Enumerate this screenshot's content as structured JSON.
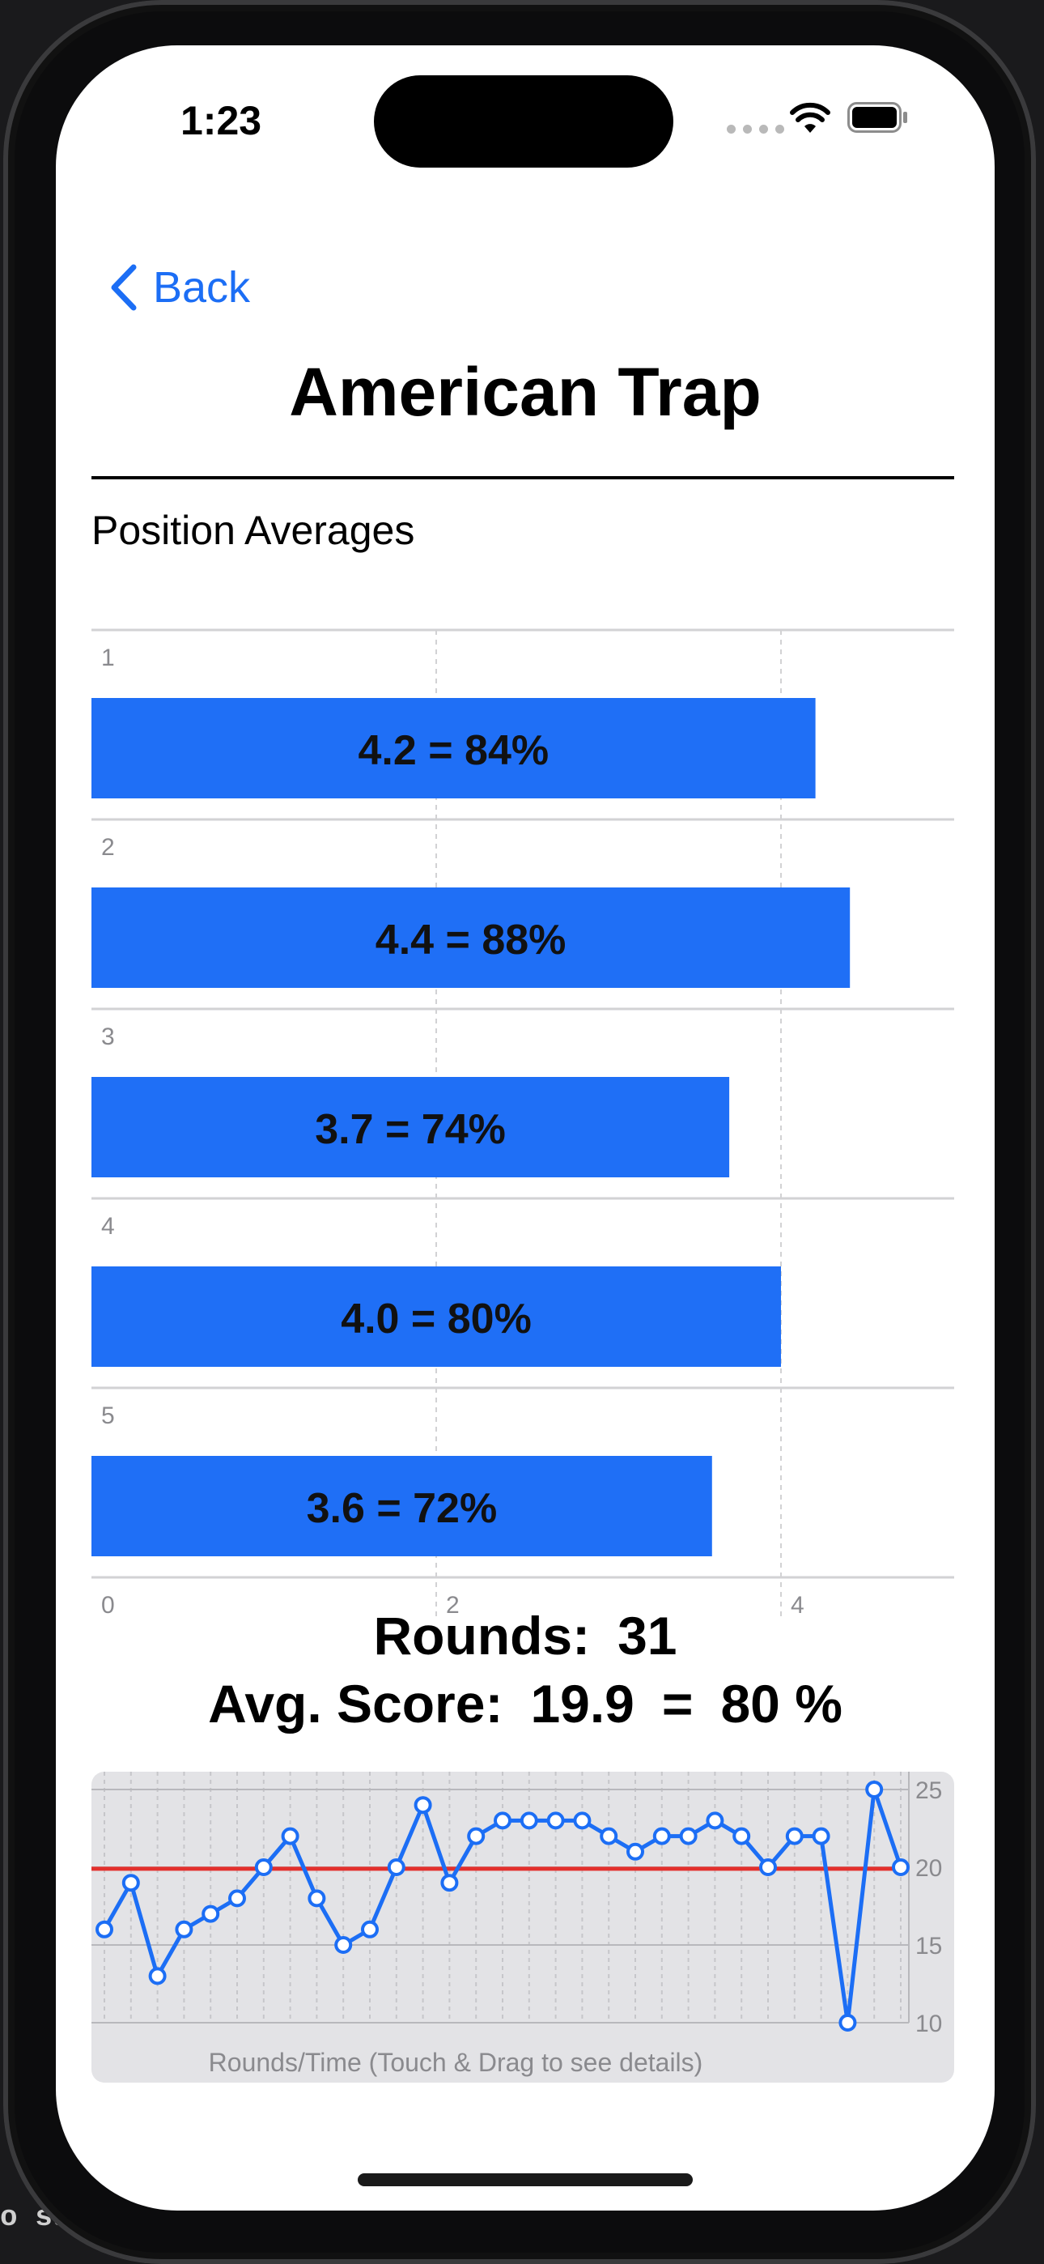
{
  "status_bar": {
    "time": "1:23"
  },
  "nav": {
    "back_label": "Back",
    "title": "American Trap"
  },
  "section": {
    "label": "Position Averages"
  },
  "colors": {
    "accent": "#1c6ef5",
    "bar": "#1f6ff6",
    "average_line": "#e3302d",
    "trend_line": "#1c6ef5"
  },
  "chart_data": [
    {
      "type": "bar",
      "orientation": "horizontal",
      "categories": [
        "1",
        "2",
        "3",
        "4",
        "5"
      ],
      "values": [
        4.2,
        4.4,
        3.7,
        4.0,
        3.6
      ],
      "bar_labels": [
        "4.2 = 84%",
        "4.4 = 88%",
        "3.7 = 74%",
        "4.0 = 80%",
        "3.6 = 72%"
      ],
      "x_ticks": [
        "0",
        "2",
        "4"
      ],
      "xlim": [
        0,
        5
      ],
      "grid": true
    },
    {
      "type": "line",
      "x_label": "Rounds/Time (Touch & Drag to see details)",
      "y_ticks": [
        "25",
        "20",
        "15",
        "10"
      ],
      "ylim": [
        10,
        25
      ],
      "average": 19.9,
      "values": [
        16,
        19,
        13,
        16,
        17,
        18,
        20,
        22,
        18,
        15,
        16,
        20,
        24,
        19,
        22,
        23,
        23,
        23,
        23,
        22,
        21,
        22,
        22,
        23,
        22,
        20,
        22,
        22,
        10,
        25,
        20
      ],
      "grid": true
    }
  ],
  "stats": {
    "rounds_label": "Rounds:",
    "rounds_value": "31",
    "avg_label": "Avg. Score:",
    "avg_value": "19.9",
    "equals": "=",
    "avg_percent": "80 %"
  },
  "background": {
    "terminal_text": "o  suc"
  }
}
